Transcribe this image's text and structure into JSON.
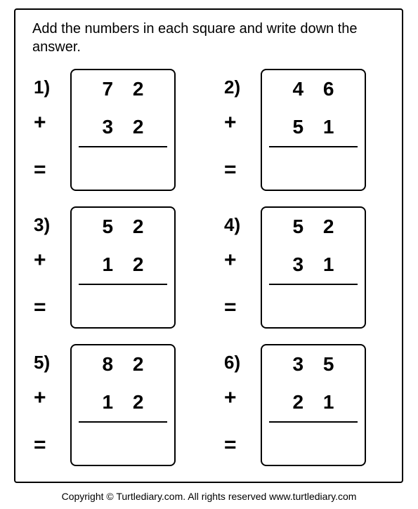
{
  "instructions": "Add the numbers in each square and write down the answer.",
  "plus_symbol": "+",
  "equals_symbol": "=",
  "problems": [
    {
      "label": "1)",
      "top": "7 2",
      "bottom": "3 2"
    },
    {
      "label": "2)",
      "top": "4 6",
      "bottom": "5 1"
    },
    {
      "label": "3)",
      "top": "5 2",
      "bottom": "1 2"
    },
    {
      "label": "4)",
      "top": "5 2",
      "bottom": "3 1"
    },
    {
      "label": "5)",
      "top": "8 2",
      "bottom": "1 2"
    },
    {
      "label": "6)",
      "top": "3 5",
      "bottom": "2 1"
    }
  ],
  "footer": "Copyright © Turtlediary.com. All rights reserved   www.turtlediary.com",
  "colors": {
    "border": "#000000",
    "text": "#000000",
    "background": "#ffffff"
  },
  "typography": {
    "instruction_fontsize": 20,
    "number_fontsize": 28,
    "label_fontsize": 26,
    "footer_fontsize": 14
  }
}
